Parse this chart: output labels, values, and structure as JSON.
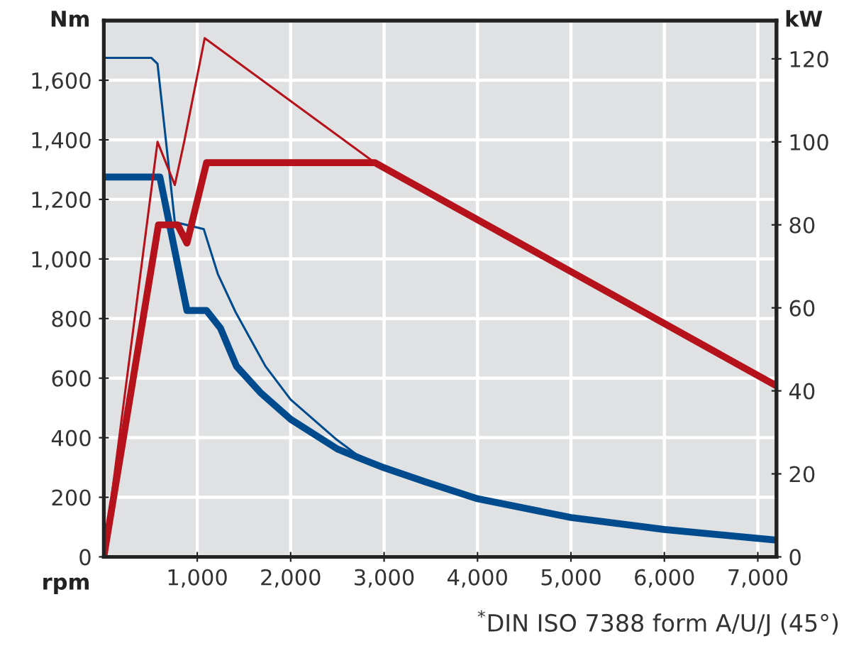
{
  "chart_data": {
    "type": "line",
    "xlabel": "rpm",
    "ylabel": "Nm",
    "y2label": "kW",
    "annotations": [
      "$^{*}$DIN ISO 7388 form A/U/J (45°)"
    ],
    "series": [
      {
        "color": "#004b8d",
        "x": [
          0,
          600,
          890,
          1100,
          1250,
          1420,
          1675,
          2000,
          2500,
          2750,
          3000,
          3450,
          4000,
          5000,
          6000,
          7200
        ],
        "values": [
          1275,
          1275,
          827,
          827,
          767,
          640,
          552,
          462,
          362,
          330,
          299,
          251,
          195,
          132,
          92,
          56
        ]
      },
      {
        "color": "#004b8d",
        "x": [
          0,
          510,
          575,
          760,
          1070,
          1220,
          1410,
          1730,
          2000,
          2490,
          2750
        ],
        "values": [
          1675,
          1675,
          1655,
          1124,
          1100,
          950,
          822,
          640,
          528,
          394,
          333
        ]
      },
      {
        "color": "#b5121b",
        "axis": "y2",
        "x": [
          0,
          585,
          790,
          890,
          1100,
          2900,
          7200
        ],
        "values": [
          0,
          80,
          80,
          75.6,
          95,
          95,
          41.2
        ]
      },
      {
        "color": "#b5121b",
        "axis": "y2",
        "x": [
          0,
          575,
          760,
          860,
          1080,
          2900
        ],
        "values": [
          0,
          100,
          89.6,
          100,
          125,
          95
        ]
      }
    ],
    "xlim": [
      0,
      7200
    ],
    "xticks": [
      {
        "value": 1000,
        "label": "1,000"
      },
      {
        "value": 2000,
        "label": "2,000"
      },
      {
        "value": 3000,
        "label": "3,000"
      },
      {
        "value": 4000,
        "label": "4,000"
      },
      {
        "value": 5000,
        "label": "5,000"
      },
      {
        "value": 6000,
        "label": "6,000"
      },
      {
        "value": 7000,
        "label": "7,000"
      }
    ],
    "ylim": [
      0,
      1800
    ],
    "yticks": [
      0,
      200,
      400,
      600,
      800,
      {
        "value": 1000,
        "label": "1,000"
      },
      {
        "value": 1200,
        "label": "1,200"
      },
      {
        "value": 1400,
        "label": "1,400"
      },
      {
        "value": 1600,
        "label": "1,600"
      }
    ],
    "y2lim": [
      0,
      129.2
    ],
    "y2ticks": [
      0,
      20,
      40,
      60,
      80,
      100,
      120
    ],
    "grid": true,
    "legend": false,
    "marker": "none",
    "line_style": "solid"
  }
}
